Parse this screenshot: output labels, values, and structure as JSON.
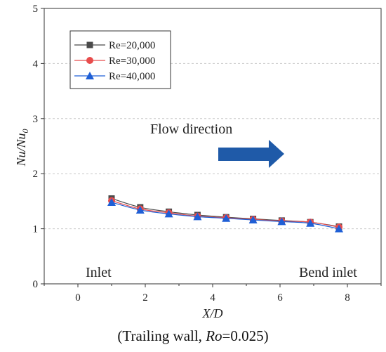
{
  "chart_data": {
    "type": "line",
    "xlabel": "X/D",
    "ylabel": "Nu/Nu0",
    "xlim": [
      -1,
      9
    ],
    "ylim": [
      0,
      5
    ],
    "x_ticks": [
      "0",
      "2",
      "4",
      "6",
      "8"
    ],
    "y_ticks": [
      "0",
      "1",
      "2",
      "3",
      "4",
      "5"
    ],
    "grid": "horizontal dashed",
    "legend_position": "top-left",
    "series": [
      {
        "name": "Re=20,000",
        "color": "#4a4a4a",
        "marker": "square",
        "x": [
          1.0,
          1.85,
          2.7,
          3.55,
          4.4,
          5.2,
          6.05,
          6.9,
          7.75
        ],
        "y": [
          1.55,
          1.39,
          1.31,
          1.25,
          1.21,
          1.18,
          1.15,
          1.12,
          1.04
        ]
      },
      {
        "name": "Re=30,000",
        "color": "#e84c4c",
        "marker": "circle",
        "x": [
          1.0,
          1.85,
          2.7,
          3.55,
          4.4,
          5.2,
          6.05,
          6.9,
          7.75
        ],
        "y": [
          1.51,
          1.36,
          1.29,
          1.23,
          1.2,
          1.17,
          1.14,
          1.12,
          1.03
        ]
      },
      {
        "name": "Re=40,000",
        "color": "#1f5fd6",
        "marker": "triangle",
        "x": [
          1.0,
          1.85,
          2.7,
          3.55,
          4.4,
          5.2,
          6.05,
          6.9,
          7.75
        ],
        "y": [
          1.48,
          1.34,
          1.27,
          1.22,
          1.19,
          1.16,
          1.13,
          1.1,
          1.0
        ]
      }
    ],
    "annotations": {
      "flow_direction": "Flow direction",
      "inlet": "Inlet",
      "bend_inlet": "Bend inlet"
    },
    "arrow_color": "#1f5aa8",
    "caption": {
      "pre": "(Trailing wall, ",
      "italic": "Ro",
      "post": "=0.025)"
    }
  }
}
